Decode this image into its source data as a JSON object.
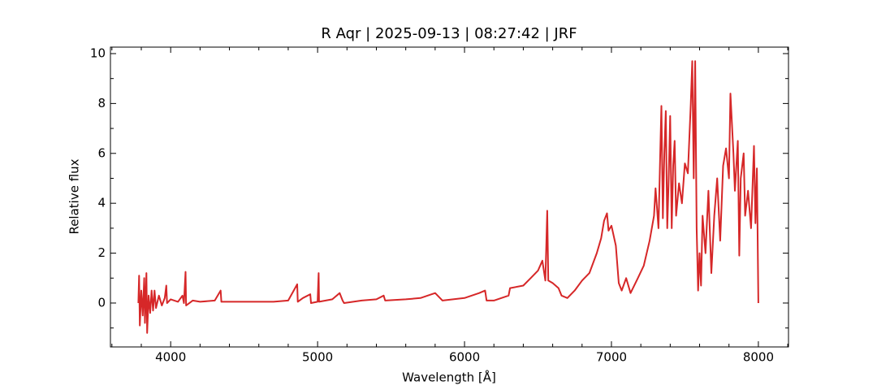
{
  "chart_data": {
    "type": "line",
    "title": "R Aqr | 2025-09-13 | 08:27:42 | JRF",
    "xlabel": "Wavelength [Å]",
    "ylabel": "Relative flux",
    "color": "#d62728",
    "xlim": [
      3590,
      8205
    ],
    "ylim": [
      -1.76,
      10.26
    ],
    "xticks": [
      4000,
      5000,
      6000,
      7000,
      8000
    ],
    "yticks": [
      0,
      2,
      4,
      6,
      8,
      10
    ],
    "xminor": [
      3600,
      3800,
      4200,
      4400,
      4600,
      4800,
      5200,
      5400,
      5600,
      5800,
      6200,
      6400,
      6600,
      6800,
      7200,
      7400,
      7600,
      7800,
      8200
    ],
    "yminor": [
      -1,
      1,
      3,
      5,
      7,
      9
    ],
    "x": [
      3780,
      3785,
      3790,
      3800,
      3810,
      3820,
      3825,
      3835,
      3840,
      3850,
      3860,
      3870,
      3880,
      3890,
      3900,
      3920,
      3940,
      3960,
      3970,
      3975,
      4000,
      4050,
      4080,
      4090,
      4101,
      4105,
      4150,
      4200,
      4300,
      4340,
      4345,
      4500,
      4600,
      4700,
      4800,
      4861,
      4865,
      4900,
      4950,
      4955,
      5000,
      5007,
      5010,
      5100,
      5150,
      5170,
      5180,
      5300,
      5400,
      5450,
      5460,
      5600,
      5700,
      5800,
      5850,
      6000,
      6100,
      6140,
      6150,
      6200,
      6300,
      6310,
      6400,
      6450,
      6500,
      6530,
      6550,
      6563,
      6570,
      6600,
      6640,
      6660,
      6700,
      6750,
      6800,
      6850,
      6900,
      6930,
      6950,
      6970,
      6980,
      7000,
      7030,
      7050,
      7070,
      7100,
      7130,
      7180,
      7220,
      7260,
      7290,
      7300,
      7320,
      7330,
      7340,
      7350,
      7360,
      7370,
      7380,
      7390,
      7400,
      7410,
      7420,
      7430,
      7440,
      7460,
      7480,
      7500,
      7520,
      7540,
      7550,
      7560,
      7570,
      7580,
      7590,
      7600,
      7610,
      7620,
      7640,
      7660,
      7680,
      7700,
      7720,
      7740,
      7760,
      7780,
      7800,
      7810,
      7830,
      7840,
      7860,
      7870,
      7880,
      7900,
      7910,
      7930,
      7950,
      7970,
      7980,
      7990,
      8000
    ],
    "values": [
      0.0,
      1.1,
      -0.9,
      0.5,
      -0.5,
      1.0,
      -0.8,
      1.2,
      -1.2,
      0.3,
      -0.4,
      0.5,
      -0.3,
      0.5,
      -0.2,
      0.3,
      -0.1,
      0.2,
      0.7,
      0,
      0.15,
      0.05,
      0.3,
      0,
      1.25,
      -0.1,
      0.1,
      0.05,
      0.1,
      0.5,
      0.05,
      0.05,
      0.05,
      0.05,
      0.1,
      0.75,
      0.05,
      0.2,
      0.35,
      0,
      0.05,
      1.2,
      0.05,
      0.15,
      0.4,
      0.1,
      0,
      0.1,
      0.15,
      0.3,
      0.1,
      0.15,
      0.2,
      0.4,
      0.1,
      0.2,
      0.4,
      0.5,
      0.1,
      0.1,
      0.3,
      0.6,
      0.7,
      1.0,
      1.3,
      1.7,
      0.9,
      3.7,
      0.9,
      0.8,
      0.6,
      0.3,
      0.2,
      0.5,
      0.9,
      1.2,
      2.0,
      2.6,
      3.3,
      3.6,
      2.9,
      3.1,
      2.3,
      0.8,
      0.5,
      1.0,
      0.4,
      1.0,
      1.5,
      2.5,
      3.5,
      4.6,
      3.0,
      5.5,
      7.9,
      3.4,
      6.0,
      7.7,
      3.0,
      5.0,
      7.5,
      3.0,
      5.5,
      6.5,
      3.5,
      4.8,
      4.0,
      5.6,
      5.2,
      8.0,
      9.7,
      5.0,
      9.7,
      3.0,
      0.5,
      2.0,
      0.7,
      3.5,
      2.0,
      4.5,
      1.2,
      3.5,
      5.0,
      2.5,
      5.5,
      6.2,
      5.0,
      8.4,
      6.0,
      4.5,
      6.5,
      1.9,
      5.0,
      6.0,
      3.5,
      4.5,
      3.0,
      6.3,
      3.2,
      5.4,
      0.0
    ]
  }
}
